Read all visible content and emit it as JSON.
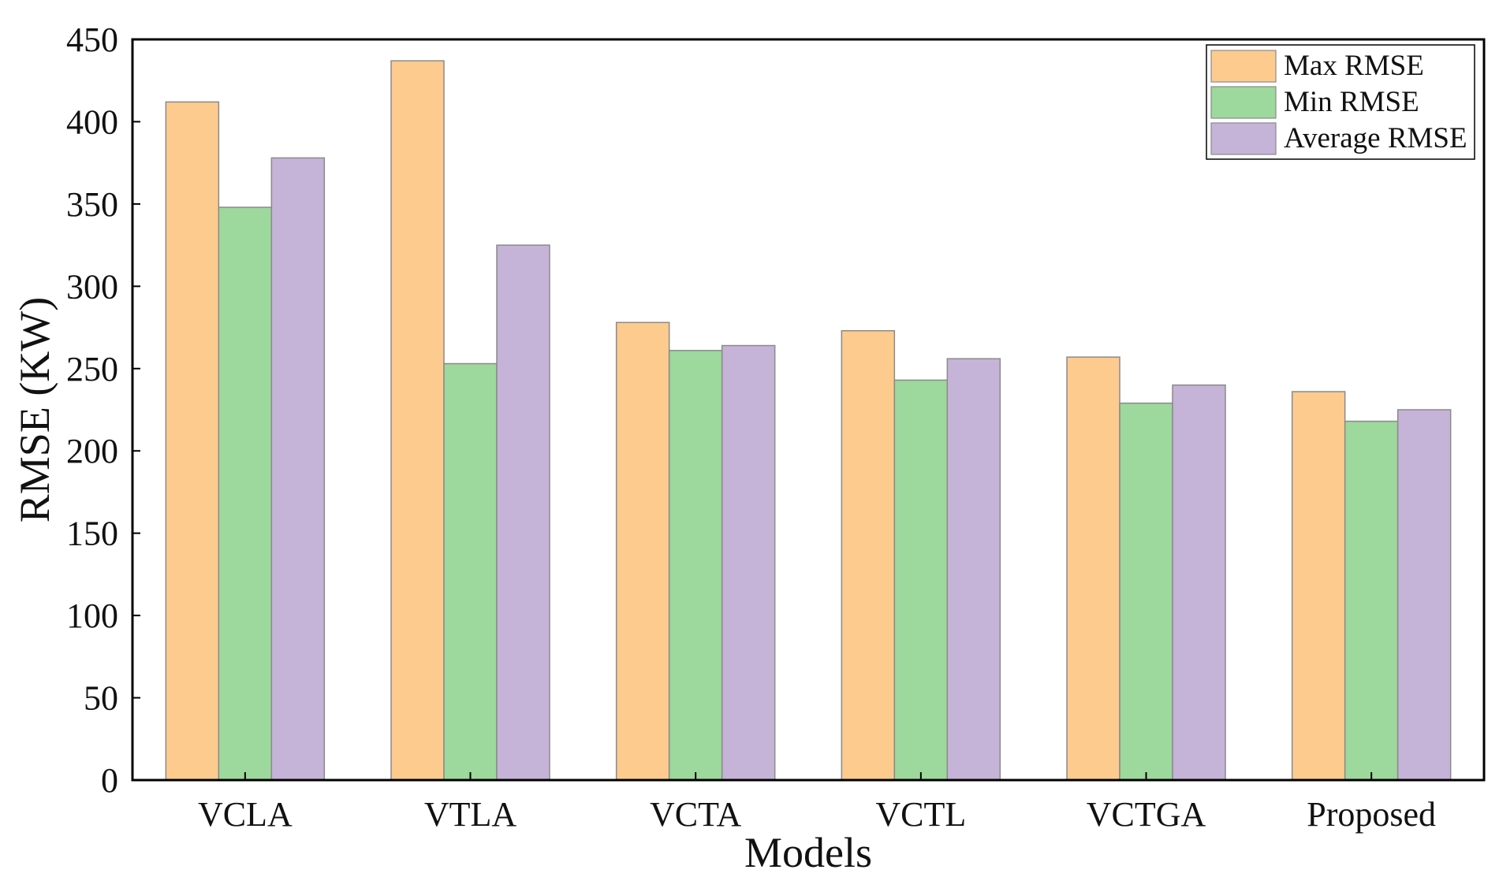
{
  "chart_data": {
    "type": "bar",
    "xlabel": "Models",
    "ylabel": "RMSE (KW)",
    "ylim": [
      0,
      450
    ],
    "yticks": [
      0,
      50,
      100,
      150,
      200,
      250,
      300,
      350,
      400,
      450
    ],
    "categories": [
      "VCLA",
      "VTLA",
      "VCTA",
      "VCTL",
      "VCTGA",
      "Proposed"
    ],
    "series": [
      {
        "name": "Max RMSE",
        "color": "#FECB8F",
        "values": [
          412,
          437,
          278,
          273,
          257,
          236
        ]
      },
      {
        "name": "Min RMSE",
        "color": "#9DD89C",
        "values": [
          348,
          253,
          261,
          243,
          229,
          218
        ]
      },
      {
        "name": "Average RMSE",
        "color": "#C5B3D8",
        "values": [
          378,
          325,
          264,
          256,
          240,
          225
        ]
      }
    ],
    "grid": false,
    "legend_position": "top-right"
  }
}
